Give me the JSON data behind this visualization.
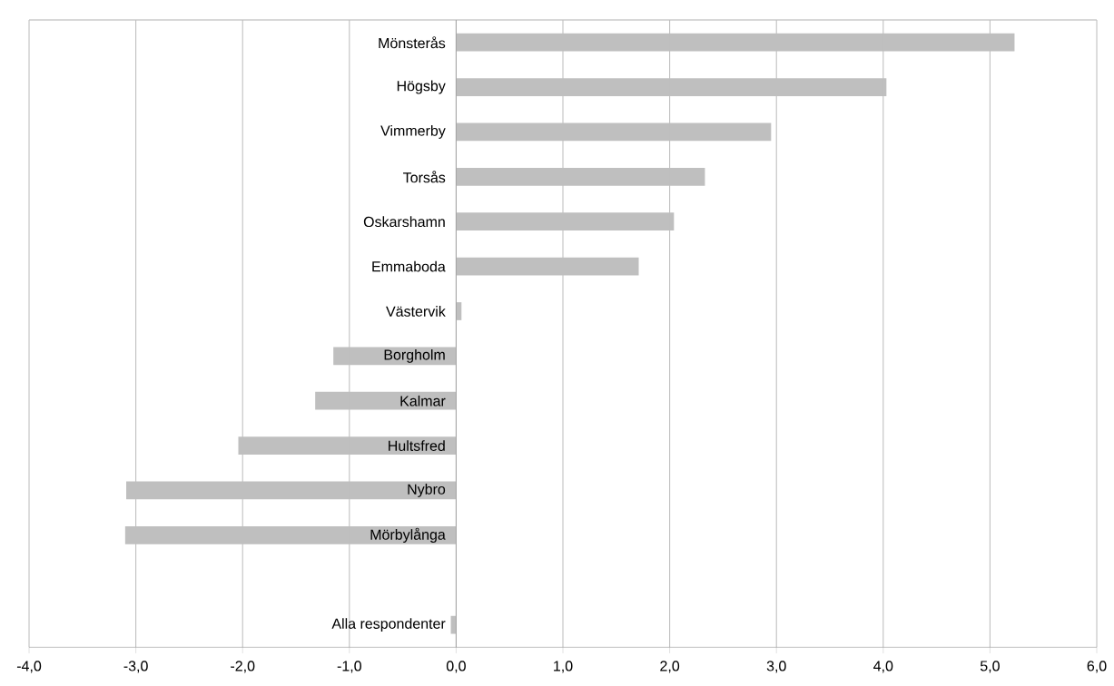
{
  "chart_data": {
    "type": "bar",
    "orientation": "horizontal",
    "categories": [
      "Mönsterås",
      "Högsby",
      "Vimmerby",
      "Torsås",
      "Oskarshamn",
      "Emmaboda",
      "Västervik",
      "Borgholm",
      "Kalmar",
      "Hultsfred",
      "Nybro",
      "Mörbylånga",
      null,
      "Alla respondenter"
    ],
    "values": [
      5.23,
      4.03,
      2.95,
      2.33,
      2.04,
      1.71,
      0.05,
      -1.15,
      -1.32,
      -2.04,
      -3.09,
      -3.1,
      null,
      -0.05
    ],
    "color": "#bfbfbf",
    "xlim": [
      -4,
      6
    ],
    "xticks": [
      {
        "value": -4,
        "label": "-4,0"
      },
      {
        "value": -3,
        "label": "-3,0"
      },
      {
        "value": -2,
        "label": "-2,0"
      },
      {
        "value": -1,
        "label": "-1,0"
      },
      {
        "value": 0,
        "label": "0,0"
      },
      {
        "value": 1,
        "label": "1,0"
      },
      {
        "value": 2,
        "label": "2,0"
      },
      {
        "value": 3,
        "label": "3,0"
      },
      {
        "value": 4,
        "label": "4,0"
      },
      {
        "value": 5,
        "label": "5,0"
      },
      {
        "value": 6,
        "label": "6,0"
      }
    ],
    "grid": "x"
  }
}
